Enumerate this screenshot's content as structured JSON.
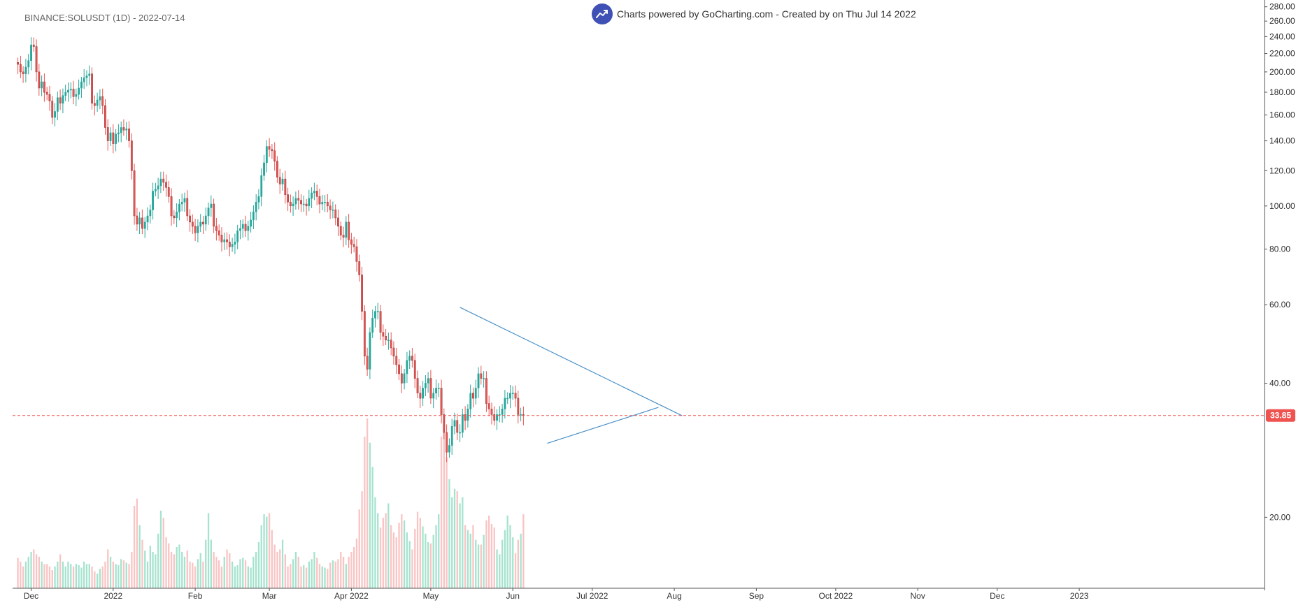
{
  "header": {
    "symbol": "BINANCE:SOLUSDT (1D) - 2022-07-14",
    "credit": "Charts powered by GoCharting.com - Created by  on Thu Jul 14 2022",
    "credit_icon": "trend-up-icon"
  },
  "colors": {
    "up": "#26a69a",
    "down": "#ef5350",
    "up_volume": "#a5e3cf",
    "down_volume": "#f9c4c4",
    "trendline": "#4a90c8",
    "last_price": "#ef5350",
    "axis": "#555555"
  },
  "chart_data": {
    "type": "candlestick",
    "scale": "log",
    "y_ticks": [
      "20.00",
      "40.00",
      "60.00",
      "80.00",
      "100.00",
      "120.00",
      "140.00",
      "160.00",
      "180.00",
      "200.00",
      "220.00",
      "240.00",
      "260.00",
      "280.00"
    ],
    "x_ticks": [
      "Dec",
      "2022",
      "Feb",
      "Mar",
      "Apr 2022",
      "May",
      "Jun",
      "Jul 2022",
      "Aug",
      "Sep",
      "Oct 2022",
      "Nov",
      "Dec",
      "2023"
    ],
    "last_price": "33.85",
    "start_date": "2021-11-26",
    "end_date": "2022-07-14",
    "x_range": [
      "2021-11-24",
      "2023-03-12"
    ],
    "y_range": [
      15,
      290
    ],
    "close": [
      208,
      200,
      198,
      205,
      212,
      230,
      228,
      200,
      184,
      190,
      180,
      178,
      172,
      158,
      163,
      175,
      170,
      177,
      180,
      182,
      183,
      176,
      178,
      184,
      190,
      194,
      196,
      198,
      170,
      168,
      173,
      176,
      168,
      150,
      140,
      146,
      138,
      145,
      146,
      150,
      148,
      149,
      140,
      120,
      95,
      91,
      94,
      89,
      92,
      95,
      98,
      108,
      109,
      111,
      115,
      113,
      110,
      105,
      95,
      94,
      97,
      101,
      102,
      104,
      95,
      92,
      90,
      87,
      90,
      92,
      91,
      95,
      99,
      101,
      90,
      88,
      86,
      83,
      84,
      83,
      81,
      82,
      83,
      88,
      89,
      91,
      88,
      90,
      93,
      97,
      102,
      105,
      117,
      125,
      136,
      134,
      133,
      126,
      116,
      112,
      115,
      106,
      102,
      100,
      101,
      104,
      103,
      101,
      101,
      100,
      104,
      107,
      108,
      105,
      101,
      102,
      102,
      100,
      98,
      98,
      94,
      90,
      86,
      85,
      92,
      84,
      82,
      81,
      75,
      70,
      58,
      46,
      43,
      52,
      56,
      58,
      58,
      52,
      51,
      50,
      50,
      48,
      46,
      44,
      42,
      40,
      42,
      45,
      46,
      45,
      41,
      38,
      37,
      39,
      40,
      41,
      37,
      38,
      39,
      39,
      34,
      31,
      28,
      29,
      32,
      33,
      31,
      31,
      34,
      33,
      35,
      38,
      37,
      39,
      42,
      41,
      41,
      36,
      35,
      34,
      33,
      34,
      34,
      35,
      37,
      37,
      38,
      38,
      37,
      34,
      34,
      33.85
    ],
    "volume": [
      25,
      22,
      18,
      22,
      26,
      30,
      32,
      28,
      26,
      22,
      20,
      20,
      18,
      15,
      18,
      22,
      28,
      22,
      18,
      22,
      20,
      18,
      20,
      19,
      17,
      22,
      20,
      20,
      18,
      14,
      12,
      16,
      18,
      22,
      32,
      26,
      22,
      20,
      19,
      24,
      23,
      21,
      20,
      30,
      68,
      74,
      52,
      40,
      31,
      22,
      35,
      30,
      28,
      45,
      64,
      58,
      42,
      37,
      30,
      28,
      34,
      36,
      30,
      26,
      31,
      22,
      21,
      18,
      24,
      29,
      22,
      40,
      62,
      40,
      30,
      26,
      23,
      18,
      26,
      32,
      29,
      22,
      18,
      19,
      24,
      25,
      23,
      18,
      17,
      26,
      30,
      38,
      52,
      61,
      59,
      62,
      48,
      36,
      30,
      32,
      40,
      28,
      18,
      20,
      24,
      30,
      26,
      18,
      19,
      17,
      22,
      24,
      30,
      25,
      20,
      18,
      17,
      16,
      21,
      23,
      22,
      24,
      30,
      26,
      20,
      26,
      30,
      34,
      41,
      65,
      80,
      125,
      140,
      120,
      100,
      75,
      62,
      50,
      58,
      62,
      70,
      52,
      46,
      42,
      54,
      61,
      56,
      46,
      39,
      32,
      49,
      63,
      58,
      51,
      45,
      38,
      37,
      44,
      52,
      61,
      125,
      132,
      108,
      90,
      75,
      82,
      80,
      70,
      75,
      52,
      48,
      45,
      52,
      40,
      36,
      36,
      44,
      56,
      60,
      53,
      50,
      32,
      28,
      40,
      48,
      60,
      52,
      42,
      29,
      40,
      45,
      61
    ]
  },
  "overlays": {
    "upper_trend": {
      "from": [
        "2022-05-12",
        59.2
      ],
      "to": [
        "2022-08-04",
        33.8
      ]
    },
    "lower_trend": {
      "from": [
        "2022-06-14",
        29.3
      ],
      "to": [
        "2022-07-26",
        35.3
      ]
    }
  }
}
